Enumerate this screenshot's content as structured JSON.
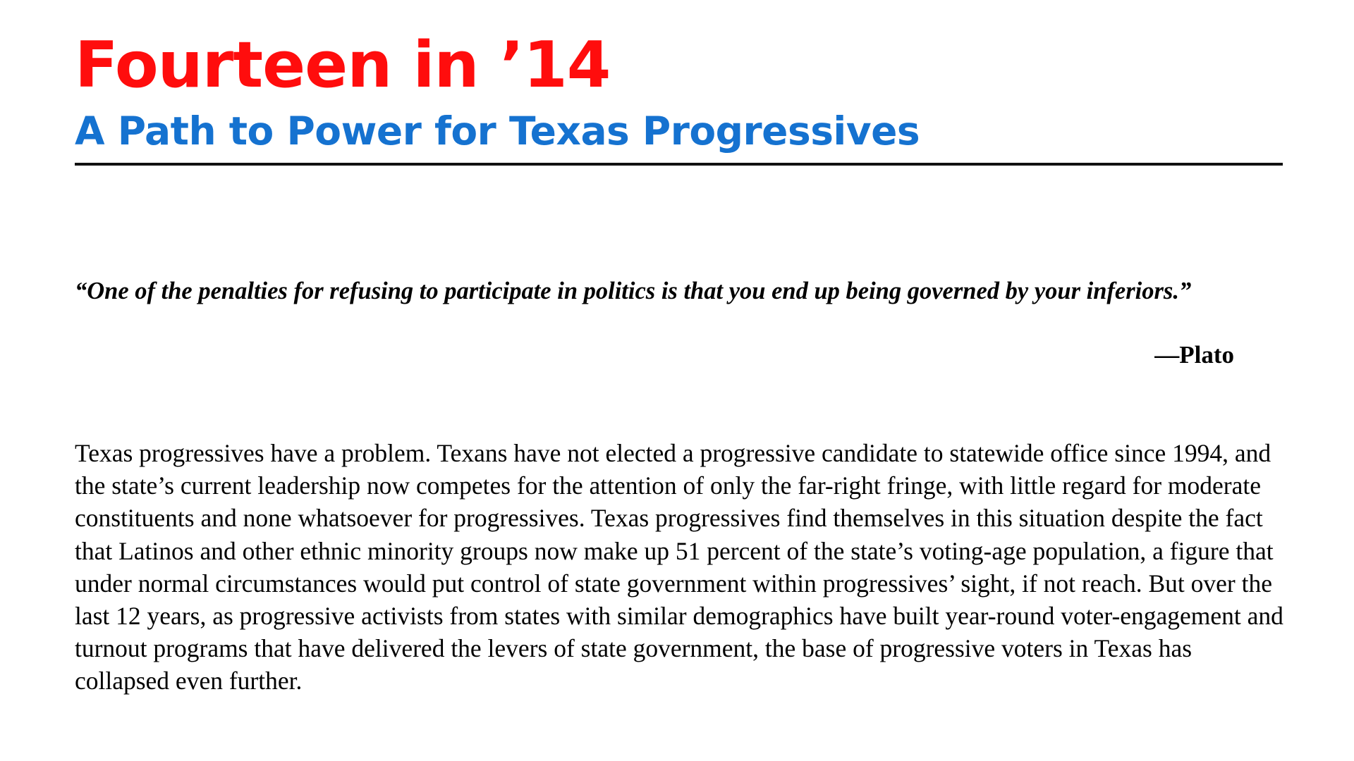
{
  "document": {
    "title": "Fourteen in ’14",
    "subtitle": "A Path to Power for Texas Progressives",
    "epigraph": {
      "quote": "“One of the penalties for refusing to participate in politics is that you end up being governed by your inferiors.”",
      "attribution": "—Plato"
    },
    "body": "Texas progressives have a problem. Texans have not elected a progressive candidate to statewide office since 1994, and the state’s current leadership now competes for the attention of only the far-right fringe, with little regard for moderate constituents and none whatsoever for progressives. Texas progressives find themselves in this situation despite the fact that Latinos and other ethnic minority groups now make up 51 percent of the state’s voting-age population, a figure that under normal circumstances would put control of state government within progressives’ sight, if not reach. But over the last 12 years, as progressive activists from states with similar demographics have built year-round voter-engagement and turnout programs that have delivered the levers of state government, the base of progressive voters in Texas has collapsed even further."
  },
  "colors": {
    "title": "#ff0d0d",
    "subtitle": "#1572d0",
    "rule": "#111111",
    "text": "#000000"
  }
}
